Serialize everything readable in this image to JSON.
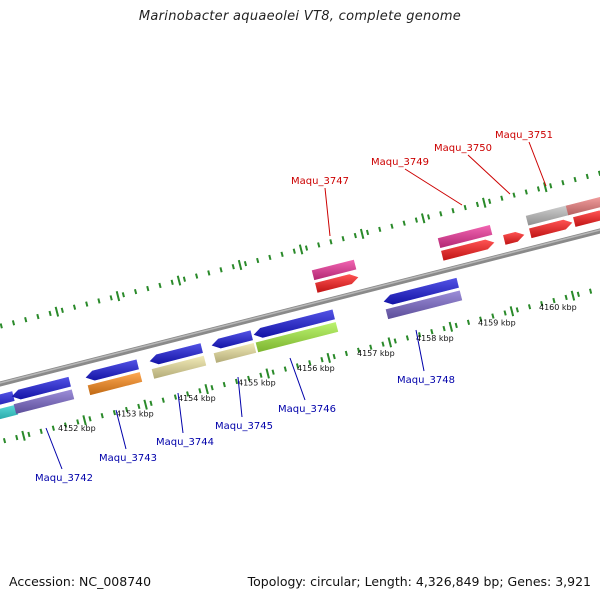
{
  "title": "Marinobacter aquaeolei VT8, complete genome",
  "footer": {
    "accession": "Accession: NC_008740",
    "topology": "Topology: circular; Length: 4,326,849 bp; Genes: 3,921"
  },
  "colors": {
    "backbone": "#8a8a8a",
    "ticks": "#2a8a2a",
    "plus_label": "#cc0000",
    "minus_label": "#0000aa"
  },
  "kbp_labels": [
    "4152 kbp",
    "4153 kbp",
    "4154 kbp",
    "4155 kbp",
    "4156 kbp",
    "4157 kbp",
    "4158 kbp",
    "4159 kbp",
    "4160 kbp"
  ],
  "genes_plus": [
    {
      "name": "Maqu_3747",
      "color": "#ff1a1a",
      "cog_color": "#ee3399"
    },
    {
      "name": "Maqu_3749",
      "color": "#ff1a1a",
      "cog_color": "#ee3399"
    },
    {
      "name": "Maqu_3750",
      "color": "#ff1a1a",
      "cog_color": ""
    },
    {
      "name": "Maqu_3751",
      "color": "#ff1a1a",
      "cog_color": "#c0c0c0"
    }
  ],
  "genes_minus": [
    {
      "name": "Maqu_3742",
      "color": "#1a1add",
      "cog_color": "#7b68cc"
    },
    {
      "name": "Maqu_3743",
      "color": "#1a1add",
      "cog_color": "#ff8c1a"
    },
    {
      "name": "Maqu_3744",
      "color": "#1a1add",
      "cog_color": "#eee4a0"
    },
    {
      "name": "Maqu_3745",
      "color": "#1a1add",
      "cog_color": "#eee4a0"
    },
    {
      "name": "Maqu_3746",
      "color": "#1a1add",
      "cog_color": "#a6f040"
    },
    {
      "name": "Maqu_3748",
      "color": "#1a1add",
      "cog_color": "#7b68cc"
    }
  ]
}
